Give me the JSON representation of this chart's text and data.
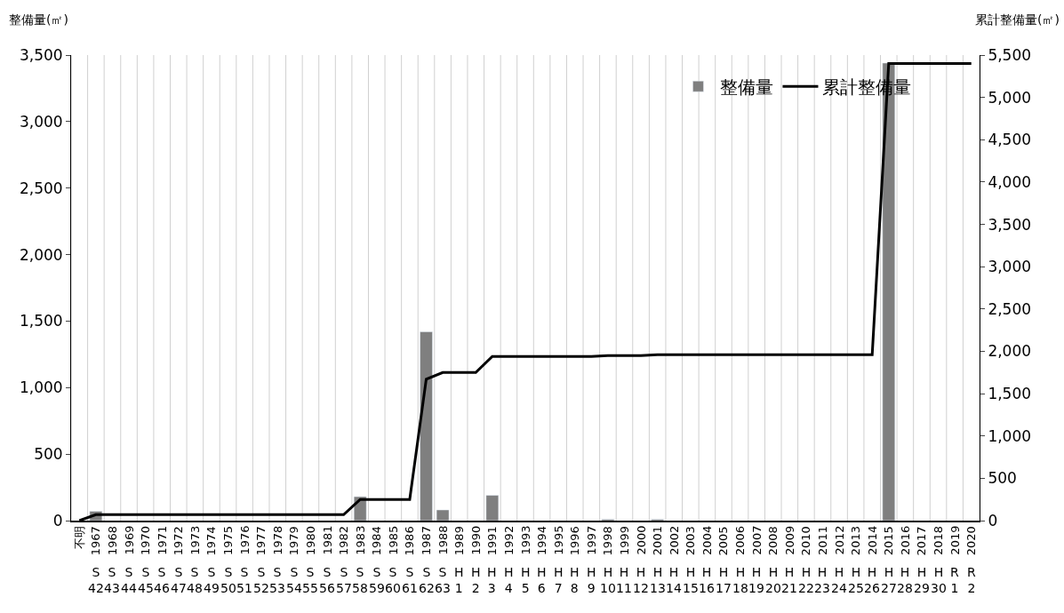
{
  "chart_data": {
    "type": "bar",
    "ylabel": "整備量(㎡)",
    "y2label": "累計整備量(㎡)",
    "categories": [
      "不明",
      "1967\nS\n42",
      "1968\nS\n43",
      "1969\nS\n44",
      "1970\nS\n45",
      "1971\nS\n46",
      "1972\nS\n47",
      "1973\nS\n48",
      "1974\nS\n49",
      "1975\nS\n50",
      "1976\nS\n51",
      "1977\nS\n52",
      "1978\nS\n53",
      "1979\nS\n54",
      "1980\nS\n55",
      "1981\nS\n56",
      "1982\nS\n57",
      "1983\nS\n58",
      "1984\nS\n59",
      "1985\nS\n60",
      "1986\nS\n61",
      "1987\nS\n62",
      "1988\nS\n63",
      "1989\nH\n1",
      "1990\nH\n2",
      "1991\nH\n3",
      "1992\nH\n4",
      "1993\nH\n5",
      "1994\nH\n6",
      "1995\nH\n7",
      "1996\nH\n8",
      "1997\nH\n9",
      "1998\nH\n10",
      "1999\nH\n11",
      "2000\nH\n12",
      "2001\nH\n13",
      "2002\nH\n14",
      "2003\nH\n15",
      "2004\nH\n16",
      "2005\nH\n17",
      "2006\nH\n18",
      "2007\nH\n19",
      "2008\nH\n20",
      "2009\nH\n21",
      "2010\nH\n22",
      "2011\nH\n23",
      "2012\nH\n24",
      "2013\nH\n25",
      "2014\nH\n26",
      "2015\nH\n27",
      "2016\nH\n28",
      "2017\nH\n29",
      "2018\nH\n30",
      "2019\nR\n1",
      "2020\nR\n2"
    ],
    "series": [
      {
        "name": "整備量",
        "color": "#7f7f7f",
        "values": [
          null,
          70,
          null,
          null,
          null,
          null,
          null,
          null,
          null,
          null,
          null,
          null,
          null,
          null,
          null,
          null,
          null,
          180,
          null,
          null,
          null,
          1420,
          80,
          null,
          null,
          190,
          null,
          null,
          null,
          null,
          null,
          null,
          10,
          null,
          null,
          10,
          null,
          null,
          null,
          null,
          null,
          null,
          null,
          null,
          null,
          null,
          null,
          null,
          null,
          3440,
          null,
          null,
          null,
          null,
          null
        ]
      },
      {
        "name": "累計整備量",
        "type": "line",
        "axis": "y2",
        "color": "#000000",
        "values": [
          0,
          70,
          70,
          70,
          70,
          70,
          70,
          70,
          70,
          70,
          70,
          70,
          70,
          70,
          70,
          70,
          70,
          250,
          250,
          250,
          250,
          1670,
          1750,
          1750,
          1750,
          1940,
          1940,
          1940,
          1940,
          1940,
          1940,
          1940,
          1950,
          1950,
          1950,
          1960,
          1960,
          1960,
          1960,
          1960,
          1960,
          1960,
          1960,
          1960,
          1960,
          1960,
          1960,
          1960,
          1960,
          5400,
          5400,
          5400,
          5400,
          5400,
          5400
        ]
      }
    ],
    "ylim": [
      0,
      3500
    ],
    "yticks": [
      {
        "value": 0,
        "label": "0"
      },
      {
        "value": 500,
        "label": "500"
      },
      {
        "value": 1000,
        "label": "1,000"
      },
      {
        "value": 1500,
        "label": "1,500"
      },
      {
        "value": 2000,
        "label": "2,000"
      },
      {
        "value": 2500,
        "label": "2,500"
      },
      {
        "value": 3000,
        "label": "3,000"
      },
      {
        "value": 3500,
        "label": "3,500"
      }
    ],
    "y2lim": [
      0,
      5500
    ],
    "y2ticks": [
      {
        "value": 0,
        "label": "0"
      },
      {
        "value": 500,
        "label": "500"
      },
      {
        "value": 1000,
        "label": "1,000"
      },
      {
        "value": 1500,
        "label": "1,500"
      },
      {
        "value": 2000,
        "label": "2,000"
      },
      {
        "value": 2500,
        "label": "2,500"
      },
      {
        "value": 3000,
        "label": "3,000"
      },
      {
        "value": 3500,
        "label": "3,500"
      },
      {
        "value": 4000,
        "label": "4,000"
      },
      {
        "value": 4500,
        "label": "4,500"
      },
      {
        "value": 5000,
        "label": "5,000"
      },
      {
        "value": 5500,
        "label": "5,500"
      }
    ],
    "grid": "x",
    "legend": "top right",
    "marker": "none",
    "line_style": "solid"
  }
}
